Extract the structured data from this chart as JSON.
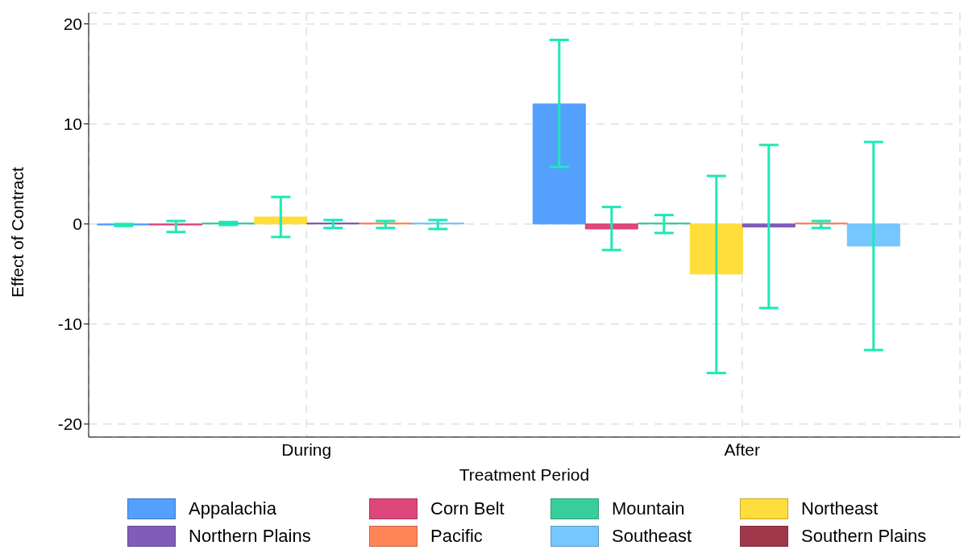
{
  "chart_data": {
    "type": "bar",
    "xlabel": "Treatment Period",
    "ylabel": "Effect of Contract",
    "categories": [
      "During",
      "After"
    ],
    "series": [
      {
        "name": "Appalachia",
        "color": "#4a9bff",
        "values": [
          -0.1,
          12.0
        ],
        "errors": [
          [
            -0.2,
            0.0
          ],
          [
            5.7,
            18.4
          ]
        ]
      },
      {
        "name": "Corn Belt",
        "color": "#dc3e74",
        "values": [
          -0.1,
          -0.5
        ],
        "errors": [
          [
            -0.8,
            0.3
          ],
          [
            -2.6,
            1.7
          ]
        ]
      },
      {
        "name": "Mountain",
        "color": "#2ecc96",
        "values": [
          0.1,
          0.1
        ],
        "errors": [
          [
            -0.1,
            0.2
          ],
          [
            -0.9,
            0.9
          ]
        ]
      },
      {
        "name": "Northeast",
        "color": "#ffdc32",
        "values": [
          0.7,
          -5.0
        ],
        "errors": [
          [
            -1.3,
            2.7
          ],
          [
            -14.9,
            4.8
          ]
        ]
      },
      {
        "name": "Northern Plains",
        "color": "#7a55b5",
        "values": [
          0.1,
          -0.3
        ],
        "errors": [
          [
            -0.4,
            0.4
          ],
          [
            -8.4,
            7.9
          ]
        ]
      },
      {
        "name": "Pacific",
        "color": "#ff7f50",
        "values": [
          0.1,
          0.1
        ],
        "errors": [
          [
            -0.4,
            0.3
          ],
          [
            -0.4,
            0.3
          ]
        ]
      },
      {
        "name": "Southeast",
        "color": "#6fc3ff",
        "values": [
          0.1,
          -2.2
        ],
        "errors": [
          [
            -0.5,
            0.4
          ],
          [
            -12.6,
            8.2
          ]
        ]
      },
      {
        "name": "Southern Plains",
        "color": "#9b2e43",
        "values": [
          null,
          null
        ]
      }
    ],
    "ylim": [
      -21.3,
      21.1
    ],
    "yticks": [
      -20,
      -10,
      0,
      10,
      20
    ],
    "grid": true,
    "legend": "bottom"
  }
}
